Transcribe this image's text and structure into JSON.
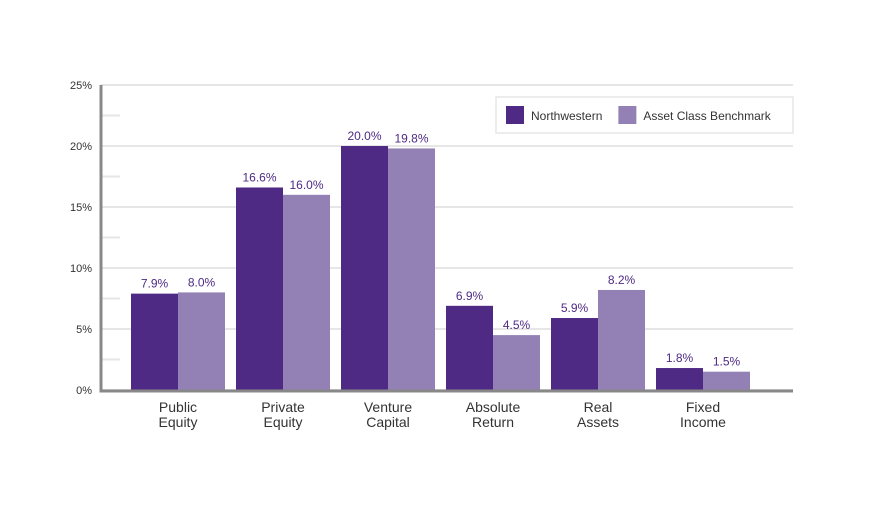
{
  "chart_data": {
    "type": "bar",
    "categories": [
      [
        "Public",
        "Equity"
      ],
      [
        "Private",
        "Equity"
      ],
      [
        "Venture",
        "Capital"
      ],
      [
        "Absolute",
        "Return"
      ],
      [
        "Real",
        "Assets"
      ],
      [
        "Fixed",
        "Income"
      ]
    ],
    "series": [
      {
        "name": "Northwestern",
        "values": [
          7.9,
          16.6,
          20.0,
          6.9,
          5.9,
          1.8
        ],
        "labels": [
          "7.9%",
          "16.6%",
          "20.0%",
          "6.9%",
          "5.9%",
          "1.8%"
        ],
        "color": "#4e2a84"
      },
      {
        "name": "Asset Class Benchmark",
        "values": [
          8.0,
          16.0,
          19.8,
          4.5,
          8.2,
          1.5
        ],
        "labels": [
          "8.0%",
          "16.0%",
          "19.8%",
          "4.5%",
          "8.2%",
          "1.5%"
        ],
        "color": "#9381b6"
      }
    ],
    "yticks": [
      "0%",
      "5%",
      "10%",
      "15%",
      "20%",
      "25%"
    ],
    "ylim": [
      0,
      25
    ],
    "grid": true,
    "legend": "top-right",
    "title": "",
    "xlabel": "",
    "ylabel": ""
  }
}
